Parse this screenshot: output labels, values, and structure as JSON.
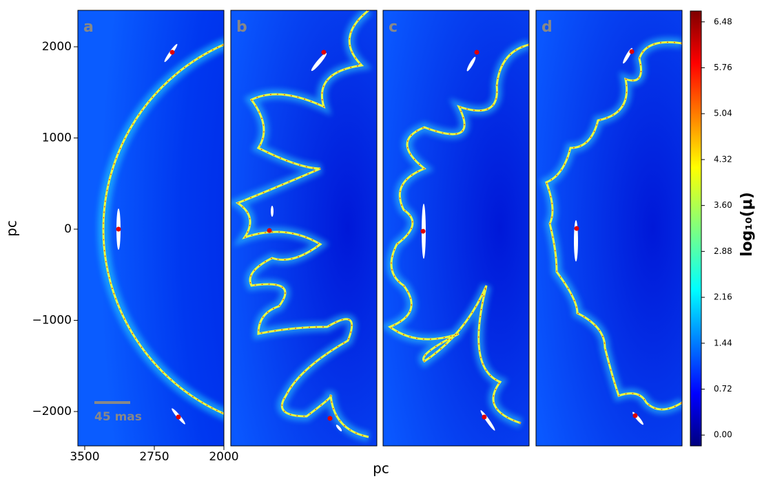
{
  "chart_data": {
    "type": "heatmap",
    "ylabel": "pc",
    "xlabel": "pc",
    "ylim": [
      -2377,
      2400
    ],
    "yticks": [
      {
        "value": -2000,
        "label": "−2000"
      },
      {
        "value": -1000,
        "label": "−1000"
      },
      0,
      1000,
      2000
    ],
    "xlim": [
      3574,
      2000
    ],
    "xticks": [
      3500,
      2750,
      2000
    ],
    "panels": [
      {
        "label": "a",
        "sources": {
          "x": [
            2557,
            3136,
            2490
          ],
          "y": [
            1940,
            0,
            -2060
          ]
        }
      },
      {
        "label": "b",
        "sources": {
          "x": [
            2572,
            3158,
            2505
          ],
          "y": [
            1940,
            -15,
            -2075
          ]
        }
      },
      {
        "label": "c",
        "sources": {
          "x": [
            2564,
            3143,
            2483
          ],
          "y": [
            1940,
            -23,
            -2060
          ]
        }
      },
      {
        "label": "d",
        "sources": {
          "x": [
            2542,
            3136,
            2505
          ],
          "y": [
            1947,
            8,
            -2045
          ]
        }
      }
    ],
    "scale_bar": "45 mas",
    "colorbar": {
      "label": "log₁₀(μ)",
      "lim": [
        -0.17,
        6.65
      ],
      "ticks": [
        {
          "value": 0,
          "label": "0.00"
        },
        0.72,
        1.44,
        2.16,
        2.88,
        {
          "value": 3.6,
          "label": "3.60"
        },
        4.32,
        5.04,
        5.76,
        6.48
      ]
    }
  }
}
